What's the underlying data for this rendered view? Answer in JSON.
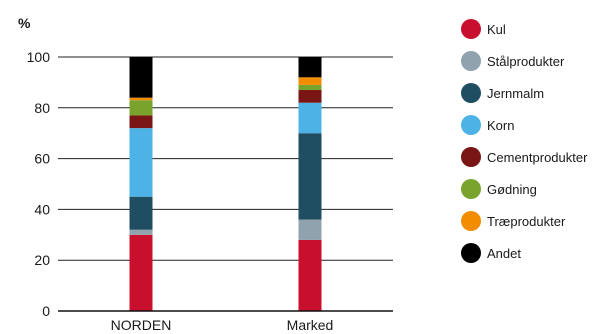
{
  "chart_data": {
    "type": "bar",
    "stacked": true,
    "unit_label": "%",
    "ylim": [
      0,
      100
    ],
    "yticks": [
      0,
      20,
      40,
      60,
      80,
      100
    ],
    "grid": true,
    "legend_position": "right",
    "categories": [
      "NORDEN",
      "Marked"
    ],
    "series": [
      {
        "name": "Kul",
        "color": "#c8102e",
        "values": [
          30,
          28
        ]
      },
      {
        "name": "Stålprodukter",
        "color": "#8fa2ad",
        "values": [
          2,
          8
        ]
      },
      {
        "name": "Jernmalm",
        "color": "#1f4e63",
        "values": [
          13,
          34
        ]
      },
      {
        "name": "Korn",
        "color": "#4db3e6",
        "values": [
          27,
          12
        ]
      },
      {
        "name": "Cementprodukter",
        "color": "#7a1515",
        "values": [
          5,
          5
        ]
      },
      {
        "name": "Gødning",
        "color": "#7aa32d",
        "values": [
          6,
          2
        ]
      },
      {
        "name": "Træprodukter",
        "color": "#f28c00",
        "values": [
          1,
          3
        ]
      },
      {
        "name": "Andet",
        "color": "#000000",
        "values": [
          16,
          8
        ]
      }
    ]
  }
}
